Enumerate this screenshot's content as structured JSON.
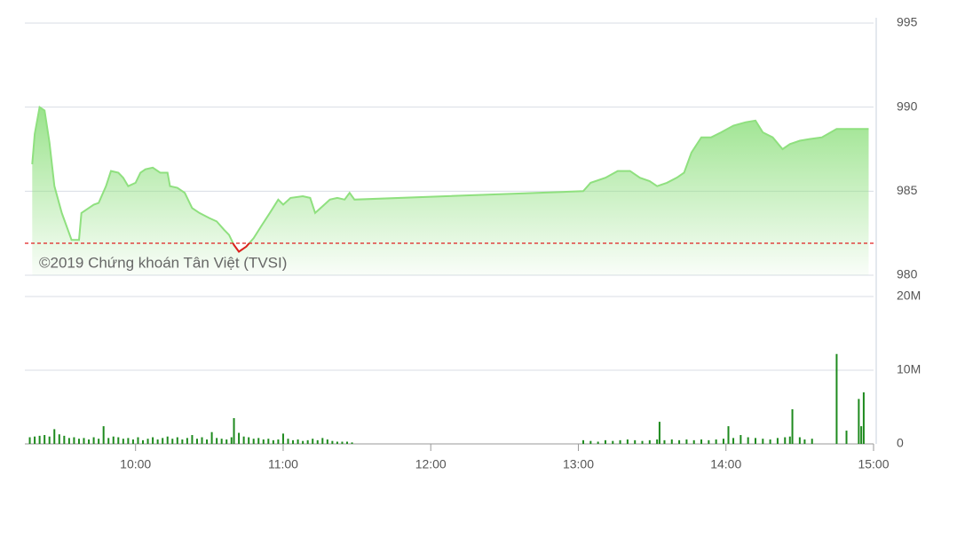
{
  "chart_data": [
    {
      "type": "line",
      "annotation": "©2019 Chứng khoán Tân Việt (TVSI)",
      "x": [
        558,
        559,
        561,
        563,
        565,
        567,
        570,
        574,
        577,
        578,
        581,
        583,
        585,
        588,
        590,
        593,
        595,
        597,
        600,
        602,
        604,
        607,
        610,
        613,
        614,
        617,
        620,
        623,
        626,
        630,
        633,
        636,
        638,
        640,
        642,
        645,
        648,
        651,
        655,
        658,
        660,
        663,
        668,
        671,
        673,
        676,
        679,
        682,
        685,
        687,
        689,
        782,
        785,
        791,
        796,
        801,
        805,
        809,
        812,
        816,
        820,
        823,
        826,
        830,
        834,
        838,
        843,
        848,
        852,
        855,
        859,
        863,
        866,
        870,
        874,
        879,
        885,
        898
      ],
      "series": [
        {
          "color": "#8fe07f",
          "values": [
            986.6,
            988.4,
            990.0,
            989.8,
            987.9,
            985.3,
            983.7,
            982.1,
            982.1,
            983.7,
            984.0,
            984.2,
            984.3,
            985.3,
            986.2,
            986.1,
            985.8,
            985.3,
            985.5,
            986.1,
            986.3,
            986.4,
            986.1,
            986.1,
            985.3,
            985.2,
            984.9,
            984.0,
            983.7,
            983.4,
            983.2,
            982.7,
            982.4,
            981.8,
            981.4,
            981.7,
            982.2,
            982.9,
            983.8,
            984.5,
            984.2,
            984.6,
            984.7,
            984.6,
            983.7,
            984.1,
            984.5,
            984.6,
            984.5,
            984.9,
            984.5,
            985.0,
            985.5,
            985.8,
            986.2,
            986.2,
            985.8,
            985.6,
            985.3,
            985.5,
            985.8,
            986.1,
            987.3,
            988.2,
            988.2,
            988.5,
            988.9,
            989.1,
            989.2,
            988.5,
            988.2,
            987.5,
            987.8,
            988.0,
            988.1,
            988.2,
            988.7,
            988.7
          ]
        }
      ],
      "reference": 981.9,
      "reference_color": "#e02020",
      "below_color": "#e02020",
      "xlim": [
        555,
        900
      ],
      "ylim": [
        980,
        995
      ],
      "yticks": [
        980,
        985,
        990,
        995
      ],
      "grid": true
    },
    {
      "type": "bar",
      "x": [
        557,
        559,
        561,
        563,
        565,
        567,
        569,
        571,
        573,
        575,
        577,
        579,
        581,
        583,
        585,
        587,
        589,
        591,
        593,
        595,
        597,
        599,
        601,
        603,
        605,
        607,
        609,
        611,
        613,
        615,
        617,
        619,
        621,
        623,
        625,
        627,
        629,
        631,
        633,
        635,
        637,
        639,
        640,
        642,
        644,
        646,
        648,
        650,
        652,
        654,
        656,
        658,
        660,
        662,
        664,
        666,
        668,
        670,
        672,
        674,
        676,
        678,
        680,
        682,
        684,
        686,
        688,
        782,
        785,
        788,
        791,
        794,
        797,
        800,
        803,
        806,
        809,
        812,
        813,
        815,
        818,
        821,
        824,
        827,
        830,
        833,
        836,
        839,
        841,
        843,
        846,
        849,
        852,
        855,
        858,
        861,
        864,
        866,
        867,
        870,
        872,
        875,
        885,
        889,
        894,
        895,
        896
      ],
      "series": [
        {
          "color": "#1e8a1e",
          "values": [
            900000,
            1000000,
            1100000,
            1200000,
            1000000,
            2000000,
            1300000,
            1100000,
            800000,
            900000,
            700000,
            800000,
            600000,
            900000,
            700000,
            2400000,
            800000,
            1000000,
            900000,
            700000,
            800000,
            600000,
            900000,
            500000,
            700000,
            900000,
            600000,
            800000,
            1000000,
            700000,
            900000,
            600000,
            800000,
            1200000,
            700000,
            900000,
            600000,
            1600000,
            800000,
            700000,
            600000,
            900000,
            3500000,
            1500000,
            1000000,
            900000,
            700000,
            800000,
            600000,
            700000,
            500000,
            600000,
            1400000,
            700000,
            500000,
            600000,
            400000,
            500000,
            700000,
            500000,
            800000,
            600000,
            400000,
            300000,
            300000,
            300000,
            200000,
            500000,
            400000,
            300000,
            500000,
            400000,
            500000,
            600000,
            500000,
            400000,
            500000,
            600000,
            3000000,
            500000,
            600000,
            500000,
            600000,
            500000,
            600000,
            500000,
            600000,
            700000,
            2400000,
            800000,
            1200000,
            900000,
            800000,
            700000,
            600000,
            800000,
            900000,
            1000000,
            4700000,
            900000,
            600000,
            700000,
            12200000,
            1800000,
            6100000,
            2400000,
            7000000
          ]
        }
      ],
      "xlim": [
        555,
        900
      ],
      "xticks": [
        {
          "value": 600,
          "label": "10:00"
        },
        {
          "value": 660,
          "label": "11:00"
        },
        {
          "value": 720,
          "label": "12:00"
        },
        {
          "value": 780,
          "label": "13:00"
        },
        {
          "value": 840,
          "label": "14:00"
        },
        {
          "value": 900,
          "label": "15:00"
        }
      ],
      "ylim": [
        0,
        20000000
      ],
      "yticks": [
        0,
        {
          "value": 10000000,
          "label": "10M"
        },
        {
          "value": 20000000,
          "label": "20M"
        }
      ],
      "grid": true
    }
  ]
}
